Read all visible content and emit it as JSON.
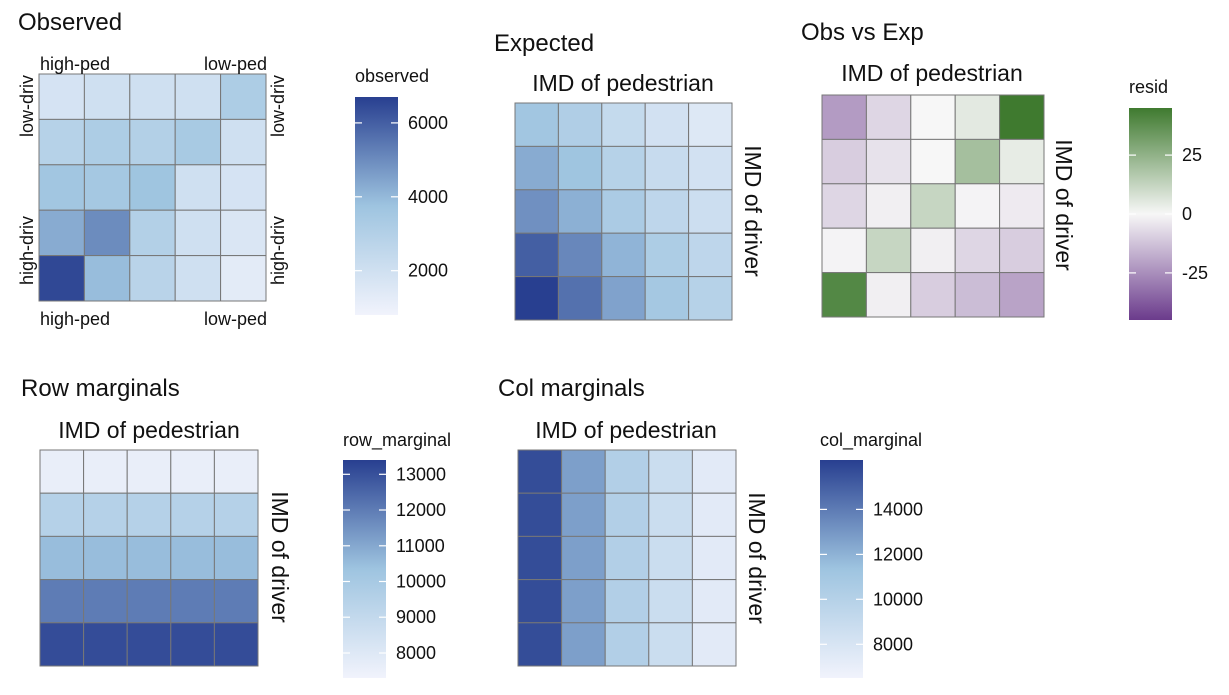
{
  "colors": {
    "blue_low": "#f1f3fc",
    "blue_mid": "#9ec4e0",
    "blue_high": "#283f90",
    "resid_low": "#6b3b8c",
    "resid_mid": "#f7f7f7",
    "resid_high": "#3f7a2f"
  },
  "chart_data": [
    {
      "type": "heatmap",
      "title": "Observed",
      "corner_labels": {
        "top_left": "high-ped",
        "top_right": "low-ped",
        "bottom_left": "high-ped",
        "bottom_right": "low-ped",
        "left_top": "low-driv",
        "left_bottom": "high-driv",
        "right_top": "low-driv",
        "right_bottom": "high-driv"
      },
      "rows": 5,
      "cols": 5,
      "values": [
        [
          1800,
          2000,
          2000,
          2000,
          3200
        ],
        [
          2900,
          3200,
          3000,
          3400,
          2000
        ],
        [
          3600,
          3500,
          3700,
          2000,
          1800
        ],
        [
          4300,
          5000,
          3000,
          2000,
          1600
        ],
        [
          6500,
          3900,
          2800,
          2000,
          1300
        ]
      ],
      "legend": {
        "title": "observed",
        "ticks": [
          2000,
          4000,
          6000
        ],
        "range": [
          800,
          6700
        ]
      }
    },
    {
      "type": "heatmap",
      "title": "Expected",
      "xlabel": "IMD of pedestrian",
      "ylabel": "IMD of driver",
      "rows": 5,
      "cols": 5,
      "values": [
        [
          3600,
          3100,
          2400,
          1900,
          1500
        ],
        [
          4300,
          3700,
          2900,
          2300,
          1900
        ],
        [
          4900,
          4200,
          3300,
          2600,
          2100
        ],
        [
          6000,
          5100,
          4100,
          3200,
          2600
        ],
        [
          6700,
          5600,
          4500,
          3500,
          2900
        ]
      ],
      "legend_scale": "observed"
    },
    {
      "type": "heatmap",
      "title": "Obs vs Exp",
      "xlabel": "IMD of pedestrian",
      "ylabel": "IMD of driver",
      "rows": 5,
      "cols": 5,
      "values": [
        [
          -22,
          -8,
          0,
          5,
          45
        ],
        [
          -10,
          -5,
          0,
          20,
          4
        ],
        [
          -8,
          -2,
          12,
          -1,
          -3
        ],
        [
          -1,
          12,
          -2,
          -8,
          -10
        ],
        [
          40,
          -2,
          -10,
          -14,
          -20
        ]
      ],
      "legend": {
        "title": "resid",
        "ticks": [
          25,
          0,
          -25
        ],
        "range": [
          -45,
          45
        ]
      }
    },
    {
      "type": "heatmap",
      "title": "Row marginals",
      "xlabel": "IMD of pedestrian",
      "ylabel": "IMD of driver",
      "rows": 5,
      "cols": 5,
      "values": [
        [
          7600,
          7600,
          7600,
          7600,
          7600
        ],
        [
          9500,
          9500,
          9500,
          9500,
          9500
        ],
        [
          10500,
          10500,
          10500,
          10500,
          10500
        ],
        [
          12000,
          12000,
          12000,
          12000,
          12000
        ],
        [
          13100,
          13100,
          13100,
          13100,
          13100
        ]
      ],
      "legend": {
        "title": "row_marginal",
        "ticks": [
          13000,
          12000,
          11000,
          10000,
          9000,
          8000
        ],
        "range": [
          7300,
          13400
        ]
      }
    },
    {
      "type": "heatmap",
      "title": "Col marginals",
      "xlabel": "IMD of pedestrian",
      "ylabel": "IMD of driver",
      "rows": 5,
      "cols": 5,
      "values": [
        [
          15700,
          12700,
          10200,
          8800,
          7400
        ],
        [
          15700,
          12700,
          10200,
          8800,
          7400
        ],
        [
          15700,
          12700,
          10200,
          8800,
          7400
        ],
        [
          15700,
          12700,
          10200,
          8800,
          7400
        ],
        [
          15700,
          12700,
          10200,
          8800,
          7400
        ]
      ],
      "legend": {
        "title": "col_marginal",
        "ticks": [
          14000,
          12000,
          10000,
          8000
        ],
        "range": [
          6500,
          16200
        ]
      }
    }
  ]
}
